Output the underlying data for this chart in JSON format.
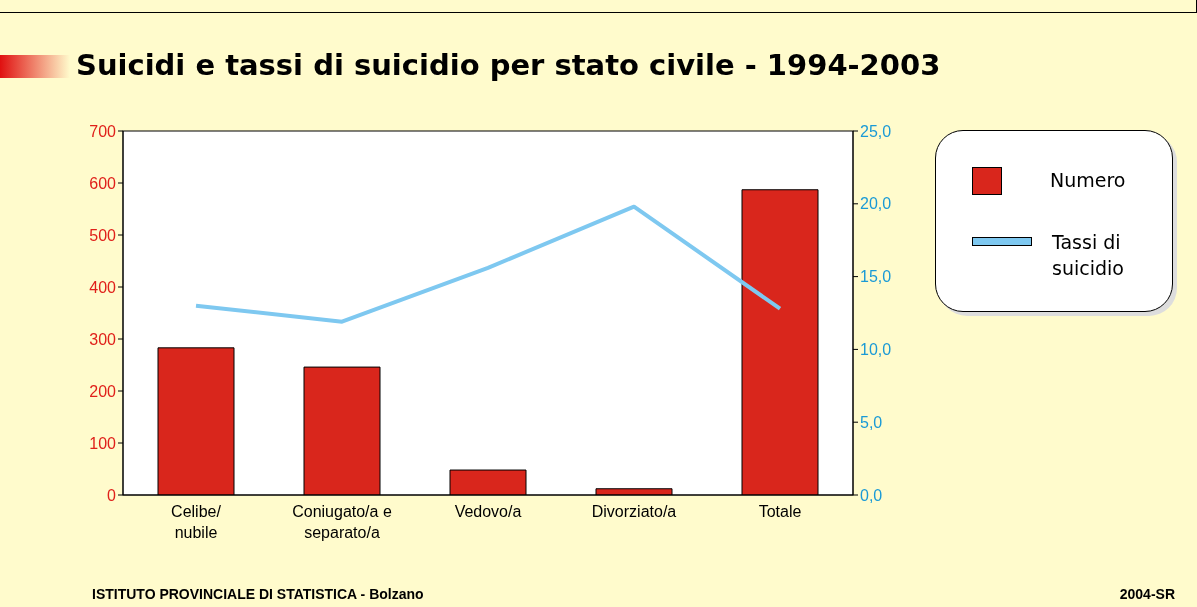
{
  "chart_data": {
    "type": "bar",
    "title": "Suicidi e tassi di suicidio per stato civile - 1994-2003",
    "categories": [
      "Celibe/\nnubile",
      "Coniugato/a e\nseparato/a",
      "Vedovo/a",
      "Divorziato/a",
      "Totale"
    ],
    "series": [
      {
        "name": "Numero",
        "color": "#d9261c",
        "values": [
          283,
          246,
          48,
          12,
          587
        ]
      },
      {
        "name": "Tassi di suicidio",
        "type": "line",
        "axis": "y2",
        "color": "#7ec8f0",
        "values": [
          13.0,
          11.9,
          15.6,
          19.8,
          12.8
        ]
      }
    ],
    "ylim": [
      0,
      700
    ],
    "yticks": [
      0,
      100,
      200,
      300,
      400,
      500,
      600,
      700
    ],
    "y2lim": [
      0,
      25
    ],
    "y2ticks": [
      {
        "value": 0,
        "label": "0,0"
      },
      {
        "value": 5,
        "label": "5,0"
      },
      {
        "value": 10,
        "label": "10,0"
      },
      {
        "value": 15,
        "label": "15,0"
      },
      {
        "value": 20,
        "label": "20,0"
      },
      {
        "value": 25,
        "label": "25,0"
      }
    ],
    "legend": "right",
    "marker": "none",
    "annotations": [
      "ISTITUTO PROVINCIALE DI STATISTICA - Bolzano",
      "2004-SR"
    ]
  }
}
